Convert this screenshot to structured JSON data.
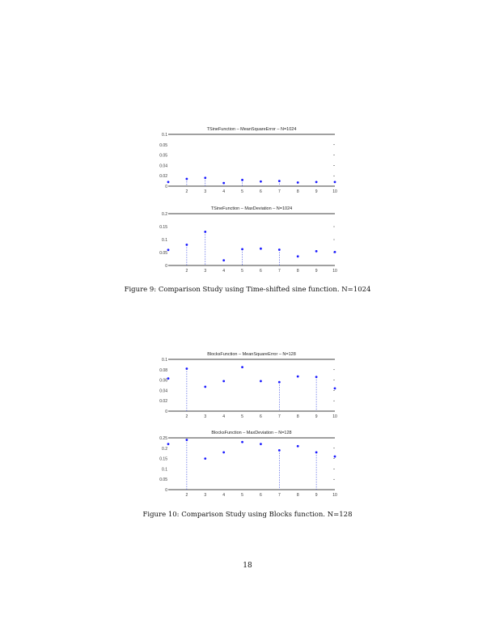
{
  "figures": [
    {
      "caption": "Figure 9: Comparison Study using Time-shifted sine function. N=1024",
      "panels": [
        {
          "title": "TSineFunction – MeanSquareError – N=1024",
          "yticks": [
            "0.1",
            "0.05",
            "0.05",
            "0.04",
            "0.02",
            "0"
          ],
          "xticks": [
            "2",
            "3",
            "4",
            "5",
            "6",
            "7",
            "8",
            "9",
            "10"
          ]
        },
        {
          "title": "TSineFunction – MaxDeviation – N=1024",
          "yticks": [
            "0.2",
            "0.15",
            "0.1",
            "0.05",
            "0"
          ],
          "xticks": [
            "2",
            "3",
            "4",
            "5",
            "6",
            "7",
            "8",
            "9",
            "10"
          ]
        }
      ]
    },
    {
      "caption": "Figure 10: Comparison Study using Blocks function. N=128",
      "panels": [
        {
          "title": "BlocksFunction – MeanSquareError – N=128",
          "yticks": [
            "0.1",
            "0.08",
            "0.06",
            "0.04",
            "0.02",
            "0"
          ],
          "xticks": [
            "2",
            "3",
            "4",
            "5",
            "6",
            "7",
            "8",
            "9",
            "10"
          ]
        },
        {
          "title": "BlocksFunction – MaxDeviation – N=128",
          "yticks": [
            "0.25",
            "0.2",
            "0.15",
            "0.1",
            "0.05",
            "0"
          ],
          "xticks": [
            "2",
            "3",
            "4",
            "5",
            "6",
            "7",
            "8",
            "9",
            "10"
          ]
        }
      ]
    }
  ],
  "page_number": "18",
  "chart_data": [
    {
      "type": "scatter",
      "title": "TSineFunction – MeanSquareError – N=1024",
      "x": [
        1,
        2,
        3,
        4,
        5,
        6,
        7,
        8,
        9,
        10
      ],
      "y": [
        0.008,
        0.014,
        0.016,
        0.006,
        0.012,
        0.009,
        0.01,
        0.007,
        0.008,
        0.008
      ],
      "ylim": [
        0,
        0.1
      ],
      "dashed_x": [
        2,
        3,
        5,
        7
      ]
    },
    {
      "type": "scatter",
      "title": "TSineFunction – MaxDeviation – N=1024",
      "x": [
        1,
        2,
        3,
        4,
        5,
        6,
        7,
        8,
        9,
        10
      ],
      "y": [
        0.06,
        0.08,
        0.13,
        0.02,
        0.063,
        0.065,
        0.061,
        0.035,
        0.055,
        0.052
      ],
      "ylim": [
        0,
        0.2
      ],
      "dashed_x": [
        2,
        3,
        5,
        7
      ]
    },
    {
      "type": "scatter",
      "title": "BlocksFunction – MeanSquareError – N=128",
      "x": [
        1,
        2,
        3,
        4,
        5,
        6,
        7,
        8,
        9,
        10
      ],
      "y": [
        0.063,
        0.082,
        0.047,
        0.058,
        0.085,
        0.058,
        0.056,
        0.067,
        0.066,
        0.044
      ],
      "ylim": [
        0,
        0.1
      ],
      "dashed_x": [
        2,
        7,
        9
      ]
    },
    {
      "type": "scatter",
      "title": "BlocksFunction – MaxDeviation – N=128",
      "x": [
        1,
        2,
        3,
        4,
        5,
        6,
        7,
        8,
        9,
        10
      ],
      "y": [
        0.22,
        0.24,
        0.15,
        0.18,
        0.23,
        0.22,
        0.19,
        0.21,
        0.18,
        0.16
      ],
      "ylim": [
        0,
        0.25
      ],
      "dashed_x": [
        2,
        7,
        9
      ]
    }
  ]
}
